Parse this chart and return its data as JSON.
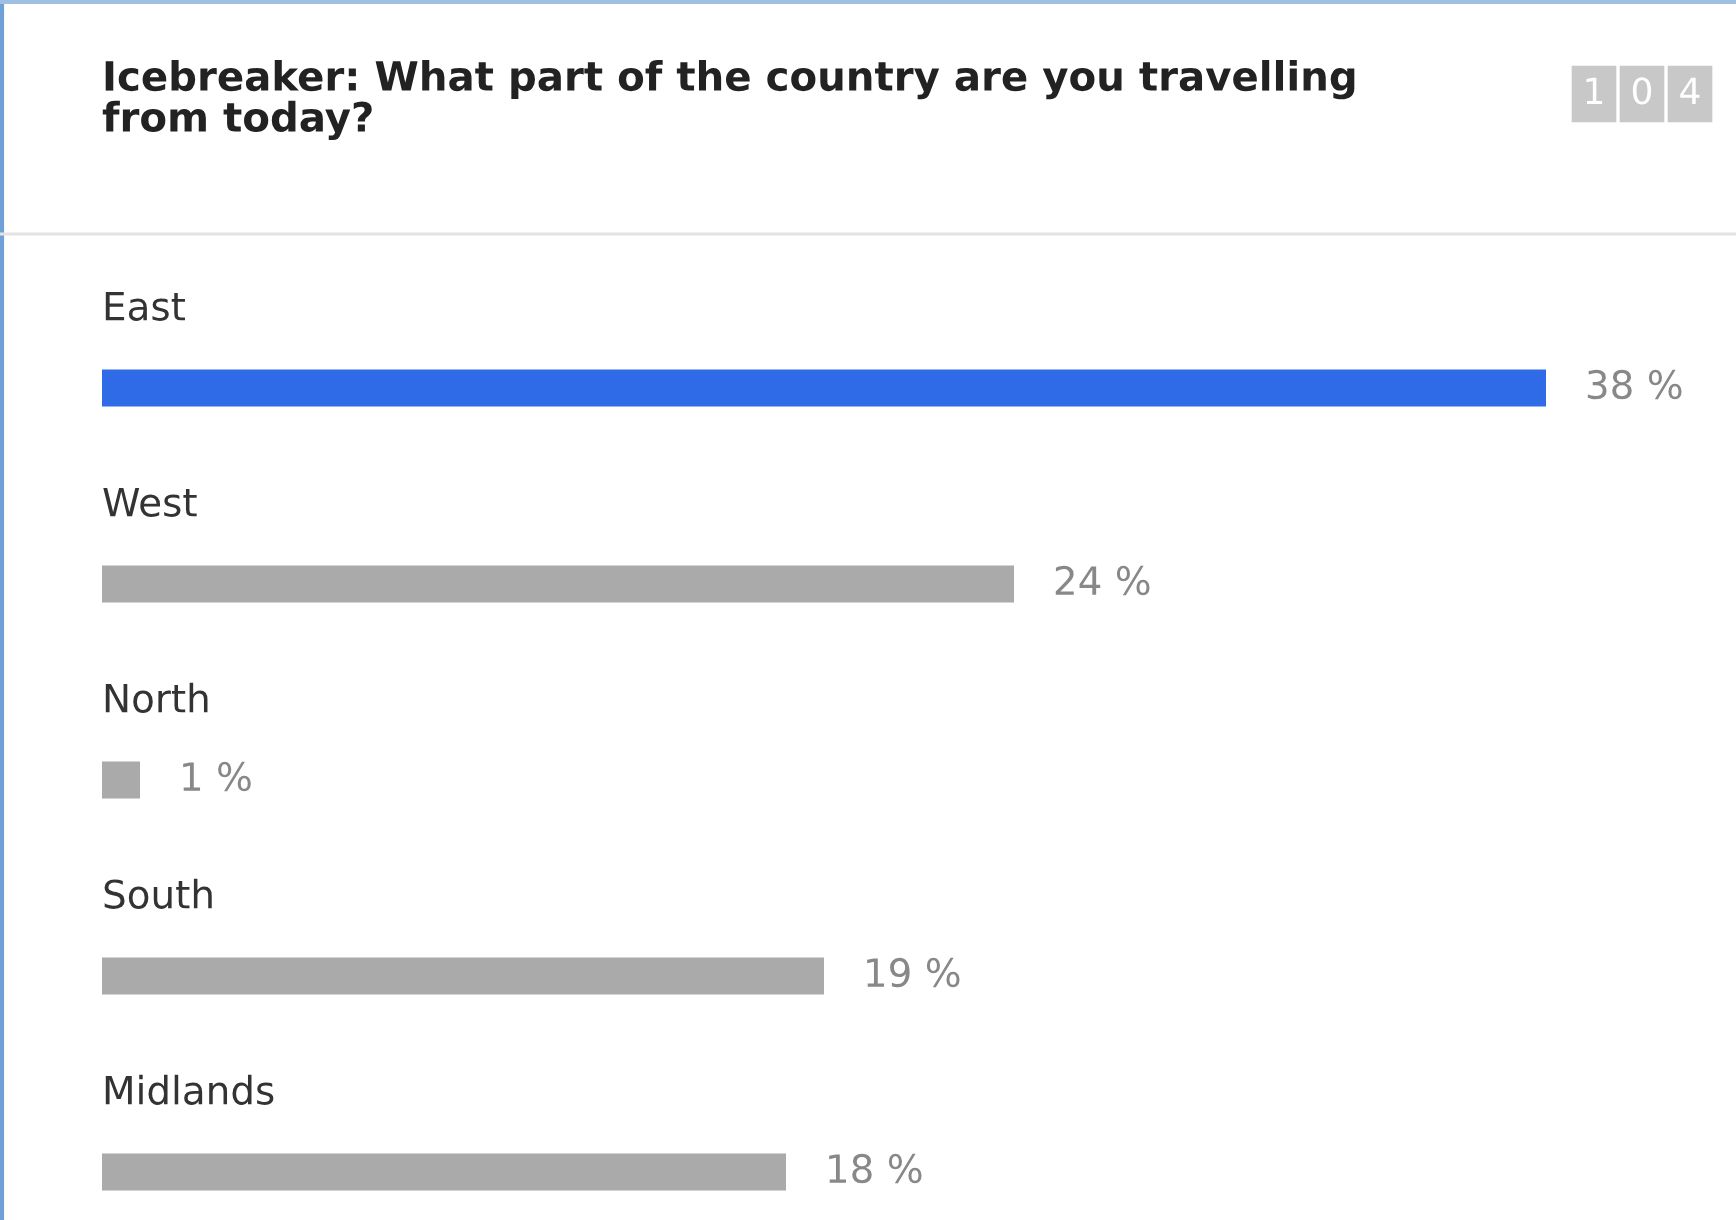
{
  "chart_data": {
    "type": "bar",
    "orientation": "horizontal",
    "title": "Icebreaker: What part of the country are you travelling from today?",
    "categories": [
      "East",
      "West",
      "North",
      "South",
      "Midlands"
    ],
    "values": [
      38,
      24,
      1,
      19,
      18
    ],
    "colors": [
      "#2f6be6",
      "#aaaaaa",
      "#aaaaaa",
      "#aaaaaa",
      "#aaaaaa"
    ],
    "value_labels": [
      "38 %",
      "24 %",
      "1 %",
      "19 %",
      "18 %"
    ],
    "annotations": [
      "104"
    ]
  }
}
